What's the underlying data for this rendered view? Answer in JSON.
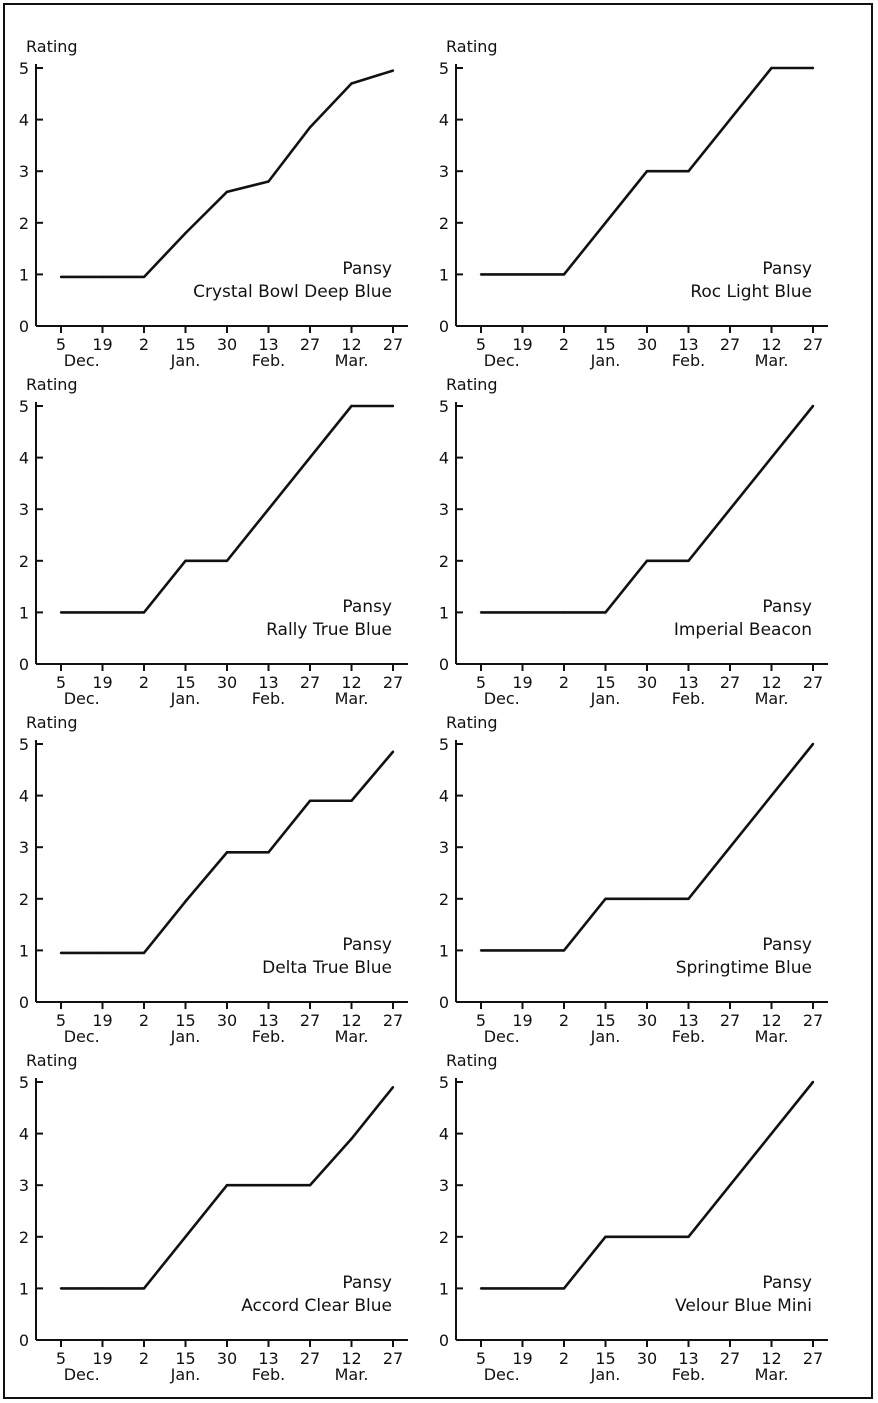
{
  "y_axis_label": "Rating",
  "x_ticks": [
    "5",
    "19",
    "2",
    "15",
    "30",
    "13",
    "27",
    "12",
    "27"
  ],
  "month_labels": [
    {
      "at": 0.5,
      "text": "Dec."
    },
    {
      "at": 3,
      "text": "Jan."
    },
    {
      "at": 5,
      "text": "Feb."
    },
    {
      "at": 7,
      "text": "Mar."
    }
  ],
  "y_ticks": [
    "0",
    "1",
    "2",
    "3",
    "4",
    "5"
  ],
  "chart_data": [
    {
      "type": "line",
      "title": "Pansy",
      "subtitle": "Crystal Bowl Deep Blue",
      "ylabel": "Rating",
      "ylim": [
        0,
        5
      ],
      "x": [
        "Dec. 5",
        "Dec. 19",
        "Jan. 2",
        "Jan. 15",
        "Jan. 30",
        "Feb. 13",
        "Feb. 27",
        "Mar. 12",
        "Mar. 27"
      ],
      "values": [
        0.95,
        0.95,
        0.95,
        1.8,
        2.6,
        2.8,
        3.85,
        4.7,
        4.95
      ]
    },
    {
      "type": "line",
      "title": "Pansy",
      "subtitle": "Roc Light Blue",
      "ylabel": "Rating",
      "ylim": [
        0,
        5
      ],
      "x": [
        "Dec. 5",
        "Dec. 19",
        "Jan. 2",
        "Jan. 15",
        "Jan. 30",
        "Feb. 13",
        "Feb. 27",
        "Mar. 12",
        "Mar. 27"
      ],
      "values": [
        1,
        1,
        1,
        2,
        3,
        3,
        4,
        5,
        5
      ]
    },
    {
      "type": "line",
      "title": "Pansy",
      "subtitle": "Rally True Blue",
      "ylabel": "Rating",
      "ylim": [
        0,
        5
      ],
      "x": [
        "Dec. 5",
        "Dec. 19",
        "Jan. 2",
        "Jan. 15",
        "Jan. 30",
        "Feb. 13",
        "Feb. 27",
        "Mar. 12",
        "Mar. 27"
      ],
      "values": [
        1,
        1,
        1,
        2,
        2,
        3,
        4,
        5,
        5
      ]
    },
    {
      "type": "line",
      "title": "Pansy",
      "subtitle": "Imperial Beacon",
      "ylabel": "Rating",
      "ylim": [
        0,
        5
      ],
      "x": [
        "Dec. 5",
        "Dec. 19",
        "Jan. 2",
        "Jan. 15",
        "Jan. 30",
        "Feb. 13",
        "Feb. 27",
        "Mar. 12",
        "Mar. 27"
      ],
      "values": [
        1,
        1,
        1,
        1,
        2,
        2,
        3,
        4,
        5
      ]
    },
    {
      "type": "line",
      "title": "Pansy",
      "subtitle": "Delta True Blue",
      "ylabel": "Rating",
      "ylim": [
        0,
        5
      ],
      "x": [
        "Dec. 5",
        "Dec. 19",
        "Jan. 2",
        "Jan. 15",
        "Jan. 30",
        "Feb. 13",
        "Feb. 27",
        "Mar. 12",
        "Mar. 27"
      ],
      "values": [
        0.95,
        0.95,
        0.95,
        1.95,
        2.9,
        2.9,
        3.9,
        3.9,
        4.85
      ]
    },
    {
      "type": "line",
      "title": "Pansy",
      "subtitle": "Springtime Blue",
      "ylabel": "Rating",
      "ylim": [
        0,
        5
      ],
      "x": [
        "Dec. 5",
        "Dec. 19",
        "Jan. 2",
        "Jan. 15",
        "Jan. 30",
        "Feb. 13",
        "Feb. 27",
        "Mar. 12",
        "Mar. 27"
      ],
      "values": [
        1,
        1,
        1,
        2,
        2,
        2,
        3,
        4,
        5
      ]
    },
    {
      "type": "line",
      "title": "Pansy",
      "subtitle": "Accord Clear Blue",
      "ylabel": "Rating",
      "ylim": [
        0,
        5
      ],
      "x": [
        "Dec. 5",
        "Dec. 19",
        "Jan. 2",
        "Jan. 15",
        "Jan. 30",
        "Feb. 13",
        "Feb. 27",
        "Mar. 12",
        "Mar. 27"
      ],
      "values": [
        1,
        1,
        1,
        2,
        3,
        3,
        3,
        3.9,
        4.9
      ]
    },
    {
      "type": "line",
      "title": "Pansy",
      "subtitle": "Velour Blue Mini",
      "ylabel": "Rating",
      "ylim": [
        0,
        5
      ],
      "x": [
        "Dec. 5",
        "Dec. 19",
        "Jan. 2",
        "Jan. 15",
        "Jan. 30",
        "Feb. 13",
        "Feb. 27",
        "Mar. 12",
        "Mar. 27"
      ],
      "values": [
        1,
        1,
        1,
        2,
        2,
        2,
        3,
        4,
        5
      ]
    }
  ]
}
